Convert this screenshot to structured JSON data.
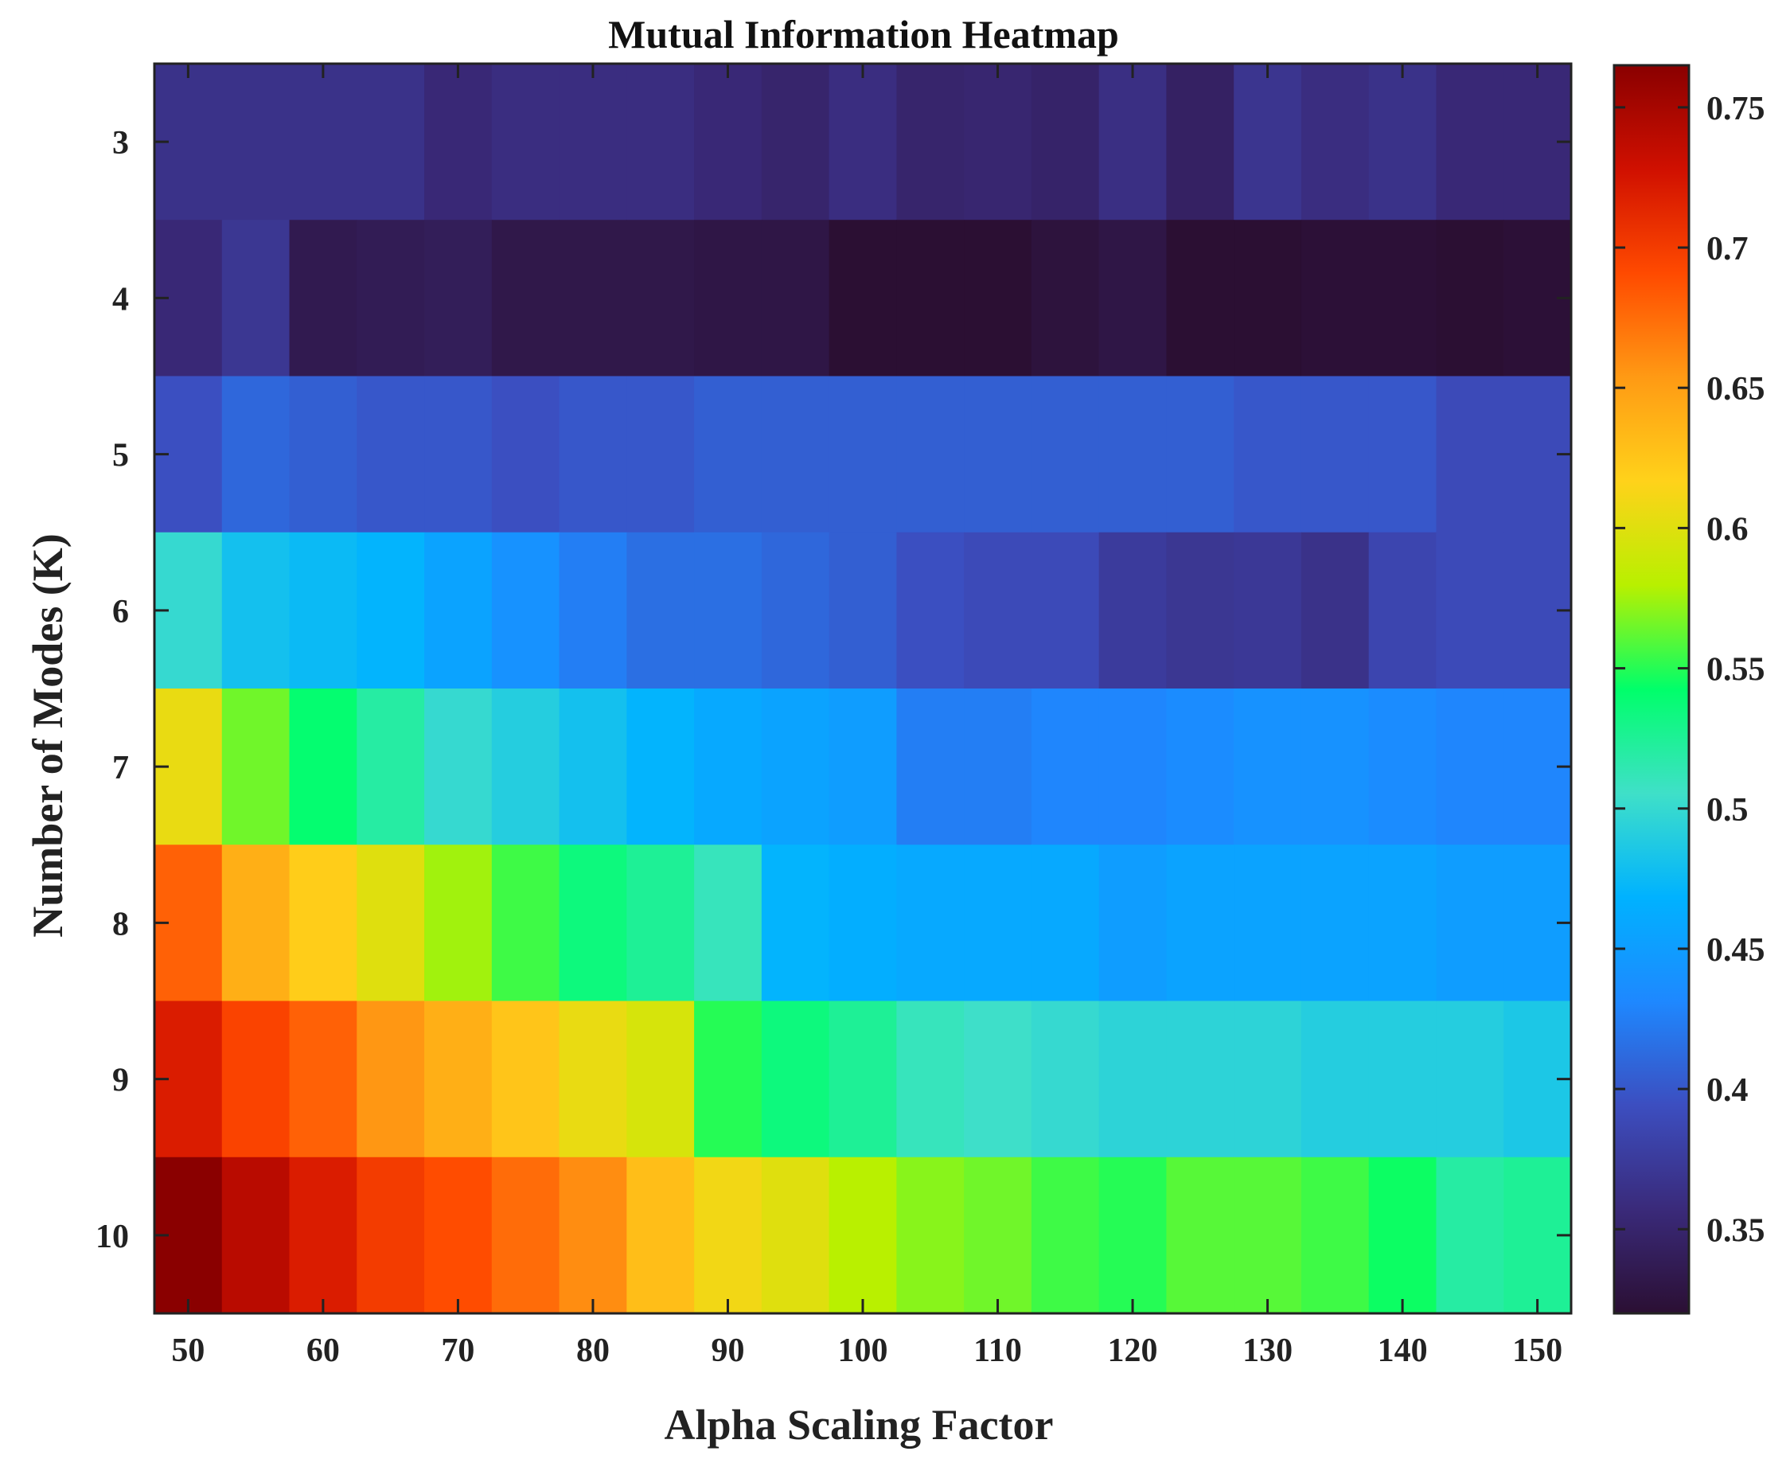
{
  "chart_data": {
    "type": "heatmap",
    "title": "Mutual Information Heatmap",
    "xlabel": "Alpha Scaling Factor",
    "ylabel": "Number of Modes (K)",
    "x": [
      50,
      55,
      60,
      65,
      70,
      75,
      80,
      85,
      90,
      95,
      100,
      105,
      110,
      115,
      120,
      125,
      130,
      135,
      140,
      145,
      150
    ],
    "y": [
      3,
      4,
      5,
      6,
      7,
      8,
      9,
      10
    ],
    "x_ticks": [
      "50",
      "60",
      "70",
      "80",
      "90",
      "100",
      "110",
      "120",
      "130",
      "140",
      "150"
    ],
    "y_ticks": [
      "3",
      "4",
      "5",
      "6",
      "7",
      "8",
      "9",
      "10"
    ],
    "values": [
      [
        0.365,
        0.365,
        0.365,
        0.365,
        0.355,
        0.36,
        0.36,
        0.36,
        0.355,
        0.35,
        0.36,
        0.35,
        0.352,
        0.348,
        0.362,
        0.345,
        0.368,
        0.36,
        0.365,
        0.355,
        0.355
      ],
      [
        0.355,
        0.37,
        0.335,
        0.338,
        0.34,
        0.332,
        0.332,
        0.332,
        0.33,
        0.33,
        0.32,
        0.32,
        0.315,
        0.325,
        0.33,
        0.32,
        0.32,
        0.322,
        0.322,
        0.32,
        0.322
      ],
      [
        0.395,
        0.41,
        0.405,
        0.4,
        0.4,
        0.395,
        0.4,
        0.4,
        0.405,
        0.405,
        0.405,
        0.405,
        0.405,
        0.405,
        0.405,
        0.405,
        0.4,
        0.4,
        0.4,
        0.39,
        0.39
      ],
      [
        0.5,
        0.48,
        0.475,
        0.47,
        0.455,
        0.44,
        0.425,
        0.415,
        0.415,
        0.41,
        0.405,
        0.395,
        0.39,
        0.39,
        0.375,
        0.37,
        0.372,
        0.365,
        0.385,
        0.39,
        0.39
      ],
      [
        0.605,
        0.565,
        0.54,
        0.52,
        0.5,
        0.49,
        0.48,
        0.47,
        0.46,
        0.455,
        0.45,
        0.425,
        0.425,
        0.43,
        0.43,
        0.435,
        0.44,
        0.44,
        0.435,
        0.43,
        0.43
      ],
      [
        0.68,
        0.64,
        0.62,
        0.6,
        0.575,
        0.555,
        0.535,
        0.525,
        0.51,
        0.47,
        0.465,
        0.46,
        0.46,
        0.46,
        0.45,
        0.455,
        0.455,
        0.455,
        0.455,
        0.45,
        0.45
      ],
      [
        0.72,
        0.695,
        0.68,
        0.655,
        0.64,
        0.625,
        0.605,
        0.595,
        0.55,
        0.535,
        0.525,
        0.51,
        0.505,
        0.5,
        0.495,
        0.495,
        0.495,
        0.49,
        0.49,
        0.49,
        0.485
      ],
      [
        0.765,
        0.74,
        0.72,
        0.7,
        0.69,
        0.675,
        0.66,
        0.63,
        0.61,
        0.6,
        0.58,
        0.57,
        0.565,
        0.555,
        0.55,
        0.56,
        0.56,
        0.555,
        0.545,
        0.52,
        0.525
      ]
    ],
    "colorbar": {
      "min": 0.32,
      "max": 0.765,
      "ticks": [
        0.35,
        0.4,
        0.45,
        0.5,
        0.55,
        0.6,
        0.65,
        0.7,
        0.75
      ],
      "tick_labels": [
        "0.35",
        "0.4",
        "0.45",
        "0.5",
        "0.55",
        "0.6",
        "0.65",
        "0.7",
        "0.75"
      ]
    },
    "colormap": [
      "#2b0f33",
      "#3a2a7a",
      "#3c4ec0",
      "#1e88ff",
      "#00b2ff",
      "#3fe0c8",
      "#00ff6a",
      "#b8f000",
      "#ffd21a",
      "#ff9a14",
      "#ff4a00",
      "#d01000",
      "#8a0000"
    ],
    "grid": false,
    "legend": "colorbar-right"
  }
}
